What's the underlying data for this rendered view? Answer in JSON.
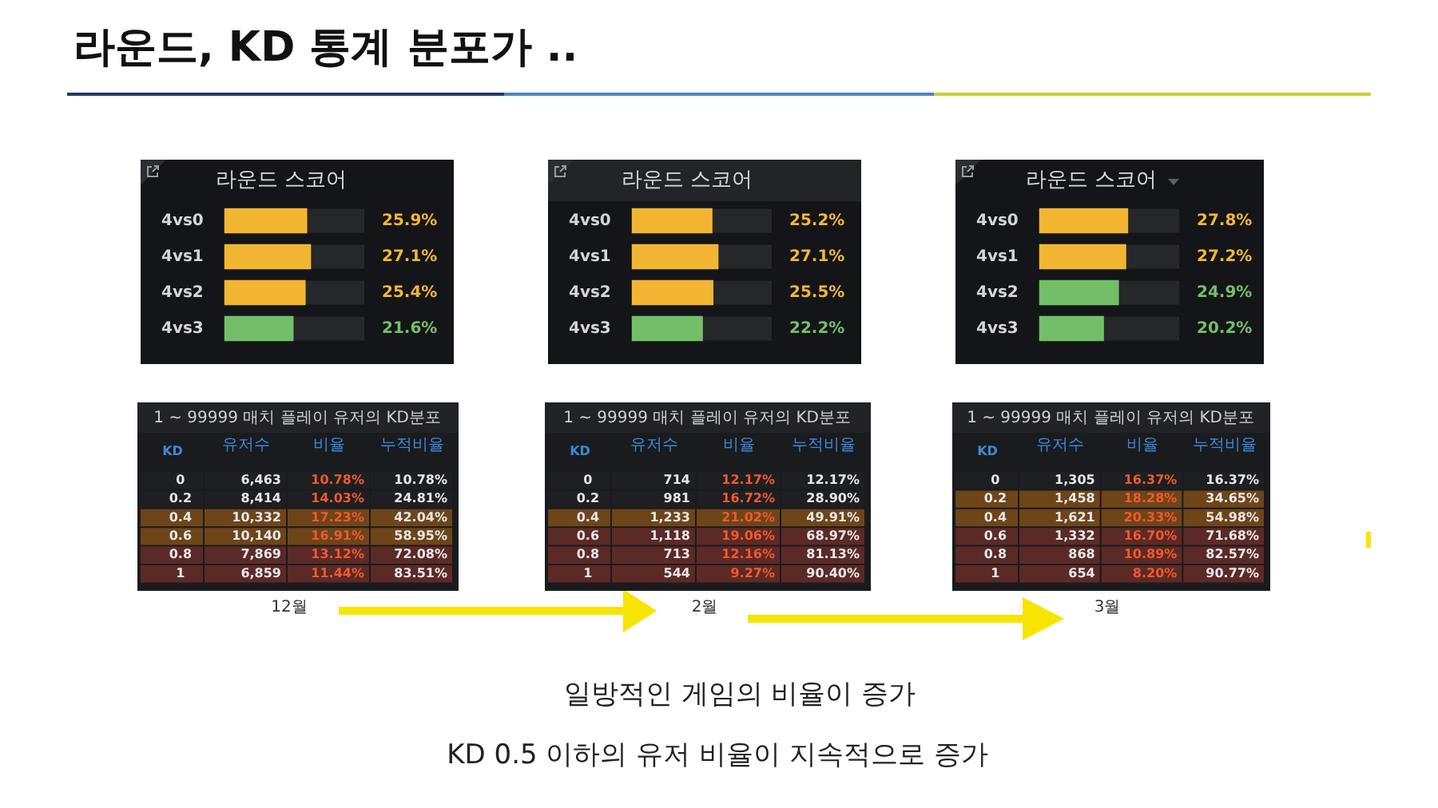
{
  "chart_data": [
    {
      "type": "bar",
      "orientation": "horizontal",
      "title": "라운드 스코어",
      "categories": [
        "4vs0",
        "4vs1",
        "4vs2",
        "4vs3"
      ],
      "values": [
        25.9,
        27.1,
        25.4,
        21.6
      ],
      "colors": [
        "#f2b632",
        "#f2b632",
        "#f2b632",
        "#73bf69"
      ],
      "value_labels": [
        "25.9%",
        "27.1%",
        "25.4%",
        "21.6%"
      ],
      "xlim": [
        0,
        44
      ],
      "tick_labels": "y",
      "annotations": [
        "라운드, KD 통계 분포가 .."
      ]
    },
    {
      "type": "bar",
      "orientation": "horizontal",
      "title": "라운드 스코어",
      "categories": [
        "4vs0",
        "4vs1",
        "4vs2",
        "4vs3"
      ],
      "values": [
        25.2,
        27.1,
        25.5,
        22.2
      ],
      "colors": [
        "#f2b632",
        "#f2b632",
        "#f2b632",
        "#73bf69"
      ],
      "value_labels": [
        "25.2%",
        "27.1%",
        "25.5%",
        "22.2%"
      ],
      "xlim": [
        0,
        44
      ],
      "tick_labels": "y"
    },
    {
      "type": "bar",
      "orientation": "horizontal",
      "title": "라운드 스코어",
      "categories": [
        "4vs0",
        "4vs1",
        "4vs2",
        "4vs3"
      ],
      "values": [
        27.8,
        27.2,
        24.9,
        20.2
      ],
      "colors": [
        "#f2b632",
        "#f2b632",
        "#73bf69",
        "#73bf69"
      ],
      "value_labels": [
        "27.8%",
        "27.2%",
        "24.9%",
        "20.2%"
      ],
      "xlim": [
        0,
        44
      ],
      "tick_labels": "y"
    },
    {
      "type": "heatmap",
      "title": "1 ~ 99999 매치 플레이 유저의 KD분포",
      "ylabel": "KD",
      "categories": [
        "유저수",
        "비율",
        "누적비율"
      ],
      "y_categories": [
        "0",
        "0.2",
        "0.4",
        "0.6",
        "0.8",
        "1"
      ],
      "cells": [
        [
          6463,
          10.78,
          10.78
        ],
        [
          8414,
          14.03,
          24.81
        ],
        [
          10332,
          17.23,
          42.04
        ],
        [
          10140,
          16.91,
          58.95
        ],
        [
          7869,
          13.12,
          72.08
        ],
        [
          6859,
          11.44,
          83.51
        ]
      ],
      "cell_labels": [
        [
          "6,463",
          "10.78%",
          "10.78%"
        ],
        [
          "8,414",
          "14.03%",
          "24.81%"
        ],
        [
          "10,332",
          "17.23%",
          "42.04%"
        ],
        [
          "10,140",
          "16.91%",
          "58.95%"
        ],
        [
          "7,869",
          "13.12%",
          "72.08%"
        ],
        [
          "6,859",
          "11.44%",
          "83.51%"
        ]
      ],
      "colors": [
        [
          "#1e1f22",
          "#1e1f22",
          "#1e1f22"
        ],
        [
          "#1e1f22",
          "#1e1f22",
          "#1e1f22"
        ],
        [
          "#6e4519",
          "#6e4519",
          "#6e4519"
        ],
        [
          "#6e4519",
          "#6e4519",
          "#6e4519"
        ],
        [
          "#5c2a26",
          "#5c2a26",
          "#5c2a26"
        ],
        [
          "#5c2a26",
          "#5c2a26",
          "#5c2a26"
        ]
      ],
      "annotations": [
        "12월"
      ]
    },
    {
      "type": "heatmap",
      "title": "1 ~ 99999 매치 플레이 유저의 KD분포",
      "ylabel": "KD",
      "categories": [
        "유저수",
        "비율",
        "누적비율"
      ],
      "y_categories": [
        "0",
        "0.2",
        "0.4",
        "0.6",
        "0.8",
        "1"
      ],
      "cells": [
        [
          714,
          12.17,
          12.17
        ],
        [
          981,
          16.72,
          28.9
        ],
        [
          1233,
          21.02,
          49.91
        ],
        [
          1118,
          19.06,
          68.97
        ],
        [
          713,
          12.16,
          81.13
        ],
        [
          544,
          9.27,
          90.4
        ]
      ],
      "cell_labels": [
        [
          "714",
          "12.17%",
          "12.17%"
        ],
        [
          "981",
          "16.72%",
          "28.90%"
        ],
        [
          "1,233",
          "21.02%",
          "49.91%"
        ],
        [
          "1,118",
          "19.06%",
          "68.97%"
        ],
        [
          "713",
          "12.16%",
          "81.13%"
        ],
        [
          "544",
          "9.27%",
          "90.40%"
        ]
      ],
      "colors": [
        [
          "#1e1f22",
          "#1e1f22",
          "#1e1f22"
        ],
        [
          "#1e1f22",
          "#1e1f22",
          "#1e1f22"
        ],
        [
          "#6e4519",
          "#6e4519",
          "#6e4519"
        ],
        [
          "#5c2a26",
          "#5c2a26",
          "#5c2a26"
        ],
        [
          "#5c2a26",
          "#5c2a26",
          "#5c2a26"
        ],
        [
          "#5c2a26",
          "#5c2a26",
          "#5c2a26"
        ]
      ],
      "annotations": [
        "2월"
      ]
    },
    {
      "type": "heatmap",
      "title": "1 ~ 99999 매치 플레이 유저의 KD분포",
      "ylabel": "KD",
      "categories": [
        "유저수",
        "비율",
        "누적비율"
      ],
      "y_categories": [
        "0",
        "0.2",
        "0.4",
        "0.6",
        "0.8",
        "1"
      ],
      "cells": [
        [
          1305,
          16.37,
          16.37
        ],
        [
          1458,
          18.28,
          34.65
        ],
        [
          1621,
          20.33,
          54.98
        ],
        [
          1332,
          16.7,
          71.68
        ],
        [
          868,
          10.89,
          82.57
        ],
        [
          654,
          8.2,
          90.77
        ]
      ],
      "cell_labels": [
        [
          "1,305",
          "16.37%",
          "16.37%"
        ],
        [
          "1,458",
          "18.28%",
          "34.65%"
        ],
        [
          "1,621",
          "20.33%",
          "54.98%"
        ],
        [
          "1,332",
          "16.70%",
          "71.68%"
        ],
        [
          "868",
          "10.89%",
          "82.57%"
        ],
        [
          "654",
          "8.20%",
          "90.77%"
        ]
      ],
      "colors": [
        [
          "#1e1f22",
          "#1e1f22",
          "#1e1f22"
        ],
        [
          "#6e4519",
          "#6e4519",
          "#6e4519"
        ],
        [
          "#6e4519",
          "#6e4519",
          "#6e4519"
        ],
        [
          "#5c2a26",
          "#5c2a26",
          "#5c2a26"
        ],
        [
          "#5c2a26",
          "#5c2a26",
          "#5c2a26"
        ],
        [
          "#5c2a26",
          "#5c2a26",
          "#5c2a26"
        ]
      ],
      "annotations": [
        "3월",
        "일방적인 게임의 비율이 증가",
        "KD 0.5 이하의 유저 비율이 지속적으로 증가"
      ]
    }
  ]
}
